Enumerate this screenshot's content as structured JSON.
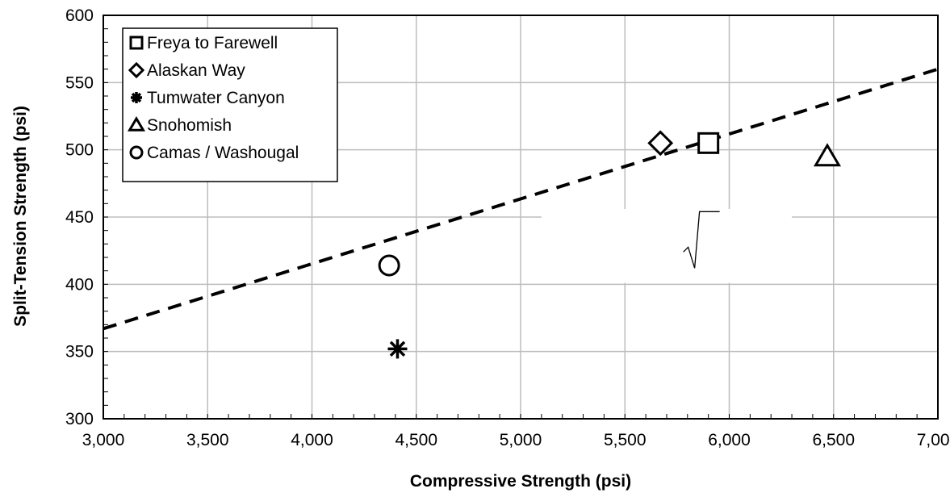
{
  "chart_data": {
    "type": "scatter",
    "xlabel": "Compressive Strength (psi)",
    "ylabel": "Split-Tension Strength (psi)",
    "xlim": [
      3000,
      7000
    ],
    "ylim": [
      300,
      600
    ],
    "xticks": [
      3000,
      3500,
      4000,
      4500,
      5000,
      5500,
      6000,
      6500,
      7000
    ],
    "yticks": [
      300,
      350,
      400,
      450,
      500,
      550,
      600
    ],
    "xtick_labels": [
      "3,000",
      "3,500",
      "4,000",
      "4,500",
      "5,000",
      "5,500",
      "6,000",
      "6,500",
      "7,000"
    ],
    "ytick_labels": [
      "300",
      "350",
      "400",
      "450",
      "500",
      "550",
      "600"
    ],
    "grid": true,
    "legend_position": "top-left",
    "series": [
      {
        "name": "Freya to Farewell",
        "marker": "square",
        "points": [
          [
            5900,
            505
          ]
        ]
      },
      {
        "name": "Alaskan Way",
        "marker": "diamond",
        "points": [
          [
            5670,
            505
          ]
        ]
      },
      {
        "name": "Tumwater Canyon",
        "marker": "asterisk",
        "points": [
          [
            4410,
            352
          ]
        ]
      },
      {
        "name": "Snohomish",
        "marker": "triangle",
        "points": [
          [
            6470,
            495
          ]
        ]
      },
      {
        "name": "Camas / Washougal",
        "marker": "circle",
        "points": [
          [
            4370,
            414
          ]
        ]
      }
    ],
    "trendline": {
      "style": "dashed",
      "points": [
        [
          3000,
          367
        ],
        [
          7000,
          560
        ]
      ]
    },
    "annotation_box": {
      "x_range": [
        5100,
        6300
      ],
      "y_range": [
        401,
        456
      ]
    }
  }
}
